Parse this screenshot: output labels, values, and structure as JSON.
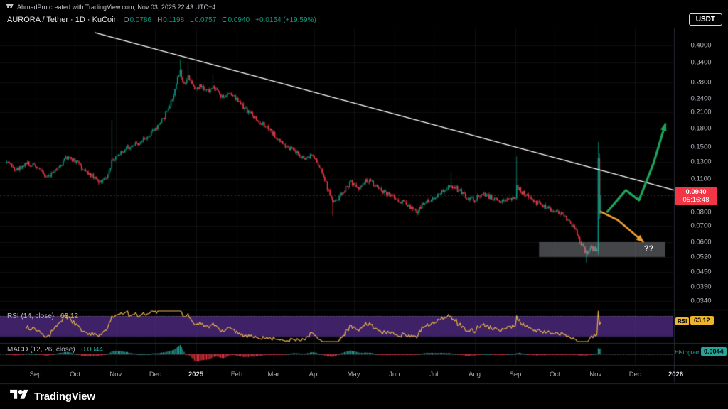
{
  "attribution": {
    "text": "AhmadPro created with TradingView.com, Nov 03, 2025 22:43 UTC+4"
  },
  "header": {
    "symbol_title": "AURORA / Tether · 1D · KuCoin",
    "ohlc": {
      "o_label": "O",
      "o": "0.0786",
      "h_label": "H",
      "h": "0.1198",
      "l_label": "L",
      "l": "0.0757",
      "c_label": "C",
      "c": "0.0940",
      "change": "+0.0154 (+19.59%)"
    },
    "currency_button": "USDT"
  },
  "price_axis": {
    "labels": [
      "0.4000",
      "0.3400",
      "0.2800",
      "0.2400",
      "0.2100",
      "0.1800",
      "0.1500",
      "0.1300",
      "0.1100",
      "0.0800",
      "0.0700",
      "0.0600",
      "0.0520",
      "0.0450",
      "0.0390",
      "0.0340"
    ],
    "current_price_badge": {
      "price": "0.0940",
      "countdown": "05:16:48"
    }
  },
  "time_axis": {
    "labels": [
      {
        "label": "Sep",
        "day": 0
      },
      {
        "label": "Oct",
        "day": 30
      },
      {
        "label": "Nov",
        "day": 61
      },
      {
        "label": "Dec",
        "day": 91
      },
      {
        "label": "2025",
        "day": 122
      },
      {
        "label": "Feb",
        "day": 153
      },
      {
        "label": "Mar",
        "day": 181
      },
      {
        "label": "Apr",
        "day": 212
      },
      {
        "label": "May",
        "day": 242
      },
      {
        "label": "Jun",
        "day": 273
      },
      {
        "label": "Jul",
        "day": 303
      },
      {
        "label": "Aug",
        "day": 334
      },
      {
        "label": "Sep",
        "day": 365
      },
      {
        "label": "Oct",
        "day": 395
      },
      {
        "label": "Nov",
        "day": 426
      },
      {
        "label": "Dec",
        "day": 456
      },
      {
        "label": "2026",
        "day": 487
      }
    ]
  },
  "indicators": {
    "rsi": {
      "label": "RSI (14, close)",
      "value": "63.12",
      "axis_tag": "RSI",
      "axis_value": "63.12",
      "length": 14,
      "upper": 70,
      "lower": 30
    },
    "macd": {
      "label": "MACD (12, 26, close)",
      "value": "0.0044",
      "axis_label": "Histogram",
      "axis_value": "0.0044",
      "fast": 12,
      "slow": 26,
      "signal": 9
    }
  },
  "footer": {
    "brand": "TradingView"
  },
  "theme": {
    "background": "#000000",
    "up": "#089981",
    "down": "#f23645",
    "grid": "rgba(255,255,255,0.06)",
    "separator": "#262b33",
    "trendline": "#ffffff",
    "green_arrow": "#1fa45b",
    "orange_arrow": "#f0a030",
    "box_fill": "rgba(160,164,171,0.42)",
    "rsi_line": "#e8b34b",
    "rsi_band": "rgba(106,57,175,0.58)",
    "hist_pos": "#26a69a",
    "hist_neg": "#f23645",
    "badge_red": "#f23645",
    "badge_yellow": "#edb42f",
    "badge_teal": "#26a69a"
  },
  "chart_data": {
    "type": "candlestick",
    "title": "AURORA / Tether 1D KuCoin",
    "price_scale": "log",
    "ylim": [
      0.0315,
      0.47
    ],
    "day_range": [
      -22,
      430
    ],
    "last": {
      "open": 0.0786,
      "high": 0.1198,
      "low": 0.0757,
      "close": 0.094,
      "change": 0.0154,
      "change_pct": 19.59
    },
    "anchors": [
      [
        -22,
        0.132
      ],
      [
        -15,
        0.12
      ],
      [
        -8,
        0.128
      ],
      [
        0,
        0.126
      ],
      [
        8,
        0.112
      ],
      [
        16,
        0.121
      ],
      [
        25,
        0.138
      ],
      [
        32,
        0.128
      ],
      [
        40,
        0.117
      ],
      [
        48,
        0.107
      ],
      [
        54,
        0.112
      ],
      [
        58,
        0.13
      ],
      [
        63,
        0.141
      ],
      [
        70,
        0.149
      ],
      [
        75,
        0.152
      ],
      [
        82,
        0.161
      ],
      [
        88,
        0.171
      ],
      [
        93,
        0.185
      ],
      [
        98,
        0.201
      ],
      [
        102,
        0.226
      ],
      [
        105,
        0.252
      ],
      [
        108,
        0.292
      ],
      [
        110,
        0.312
      ],
      [
        113,
        0.274
      ],
      [
        116,
        0.294
      ],
      [
        120,
        0.264
      ],
      [
        126,
        0.272
      ],
      [
        131,
        0.256
      ],
      [
        135,
        0.27
      ],
      [
        139,
        0.252
      ],
      [
        143,
        0.239
      ],
      [
        148,
        0.253
      ],
      [
        155,
        0.229
      ],
      [
        162,
        0.211
      ],
      [
        170,
        0.193
      ],
      [
        178,
        0.176
      ],
      [
        185,
        0.161
      ],
      [
        192,
        0.151
      ],
      [
        199,
        0.141
      ],
      [
        205,
        0.133
      ],
      [
        210,
        0.141
      ],
      [
        216,
        0.123
      ],
      [
        222,
        0.101
      ],
      [
        226,
        0.087
      ],
      [
        230,
        0.091
      ],
      [
        235,
        0.099
      ],
      [
        240,
        0.107
      ],
      [
        246,
        0.101
      ],
      [
        252,
        0.109
      ],
      [
        258,
        0.105
      ],
      [
        264,
        0.098
      ],
      [
        270,
        0.094
      ],
      [
        276,
        0.09
      ],
      [
        283,
        0.086
      ],
      [
        290,
        0.081
      ],
      [
        296,
        0.088
      ],
      [
        303,
        0.093
      ],
      [
        310,
        0.098
      ],
      [
        316,
        0.104
      ],
      [
        322,
        0.099
      ],
      [
        328,
        0.093
      ],
      [
        334,
        0.09
      ],
      [
        340,
        0.096
      ],
      [
        347,
        0.092
      ],
      [
        354,
        0.088
      ],
      [
        360,
        0.09
      ],
      [
        365,
        0.093
      ],
      [
        366,
        0.103
      ],
      [
        370,
        0.097
      ],
      [
        376,
        0.091
      ],
      [
        382,
        0.087
      ],
      [
        388,
        0.084
      ],
      [
        394,
        0.082
      ],
      [
        400,
        0.079
      ],
      [
        406,
        0.074
      ],
      [
        411,
        0.067
      ],
      [
        415,
        0.059
      ],
      [
        419,
        0.054
      ],
      [
        423,
        0.057
      ],
      [
        427,
        0.055
      ]
    ],
    "spike_highs": [
      [
        58,
        0.195
      ],
      [
        110,
        0.35
      ],
      [
        116,
        0.338
      ],
      [
        135,
        0.303
      ],
      [
        316,
        0.118
      ],
      [
        366,
        0.137
      ]
    ],
    "spike_lows": [
      [
        226,
        0.0775
      ],
      [
        290,
        0.0762
      ],
      [
        419,
        0.0492
      ]
    ],
    "final_candles": [
      {
        "day": 428,
        "o": 0.055,
        "h": 0.158,
        "l": 0.053,
        "c": 0.135
      },
      {
        "day": 429,
        "o": 0.135,
        "h": 0.141,
        "l": 0.075,
        "c": 0.0786
      },
      {
        "day": 430,
        "o": 0.0786,
        "h": 0.1198,
        "l": 0.0757,
        "c": 0.094
      }
    ],
    "annotations": {
      "trendline": {
        "from": [
          45,
          0.4525
        ],
        "to": [
          486,
          0.099
        ]
      },
      "green_arrow": {
        "points": [
          [
            435,
            0.0805
          ],
          [
            449,
            0.099
          ],
          [
            459,
            0.0899
          ],
          [
            470,
            0.128
          ],
          [
            479,
            0.187
          ]
        ]
      },
      "orange_arrow": {
        "points": [
          [
            430,
            0.0805
          ],
          [
            443,
            0.0742
          ],
          [
            462,
            0.0604
          ]
        ]
      },
      "question_box": {
        "day_from": 383,
        "day_to": 479,
        "price_top": 0.06,
        "price_bottom": 0.052,
        "label": "??"
      }
    }
  }
}
